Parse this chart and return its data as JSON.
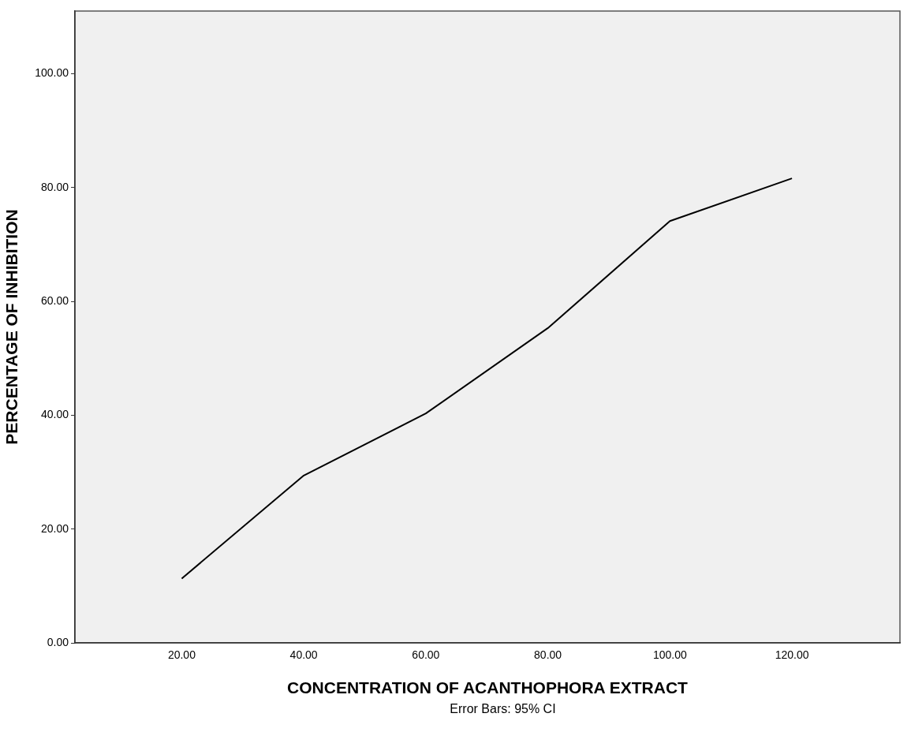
{
  "chart_data": {
    "type": "line",
    "xlabel": "CONCENTRATION OF ACANTHOPHORA EXTRACT",
    "ylabel": "PERCENTAGE OF INHIBITION",
    "x": [
      20,
      40,
      60,
      80,
      100,
      120
    ],
    "series": [
      {
        "color": "#000000",
        "values": [
          11.3,
          29.4,
          40.3,
          55.3,
          74.1,
          81.6
        ]
      }
    ],
    "xlim": [
      2.5,
      137.7
    ],
    "xticks": [
      {
        "value": 20,
        "label": "20.00"
      },
      {
        "value": 40,
        "label": "40.00"
      },
      {
        "value": 60,
        "label": "60.00"
      },
      {
        "value": 80,
        "label": "80.00"
      },
      {
        "value": 100,
        "label": "100.00"
      },
      {
        "value": 120,
        "label": "120.00"
      }
    ],
    "ylim": [
      0,
      111
    ],
    "yticks": [
      {
        "value": 0,
        "label": "0.00"
      },
      {
        "value": 20,
        "label": "20.00"
      },
      {
        "value": 40,
        "label": "40.00"
      },
      {
        "value": 60,
        "label": "60.00"
      },
      {
        "value": 80,
        "label": "80.00"
      },
      {
        "value": 100,
        "label": "100.00"
      }
    ],
    "annotations": [
      "Error Bars: 95% CI"
    ]
  }
}
